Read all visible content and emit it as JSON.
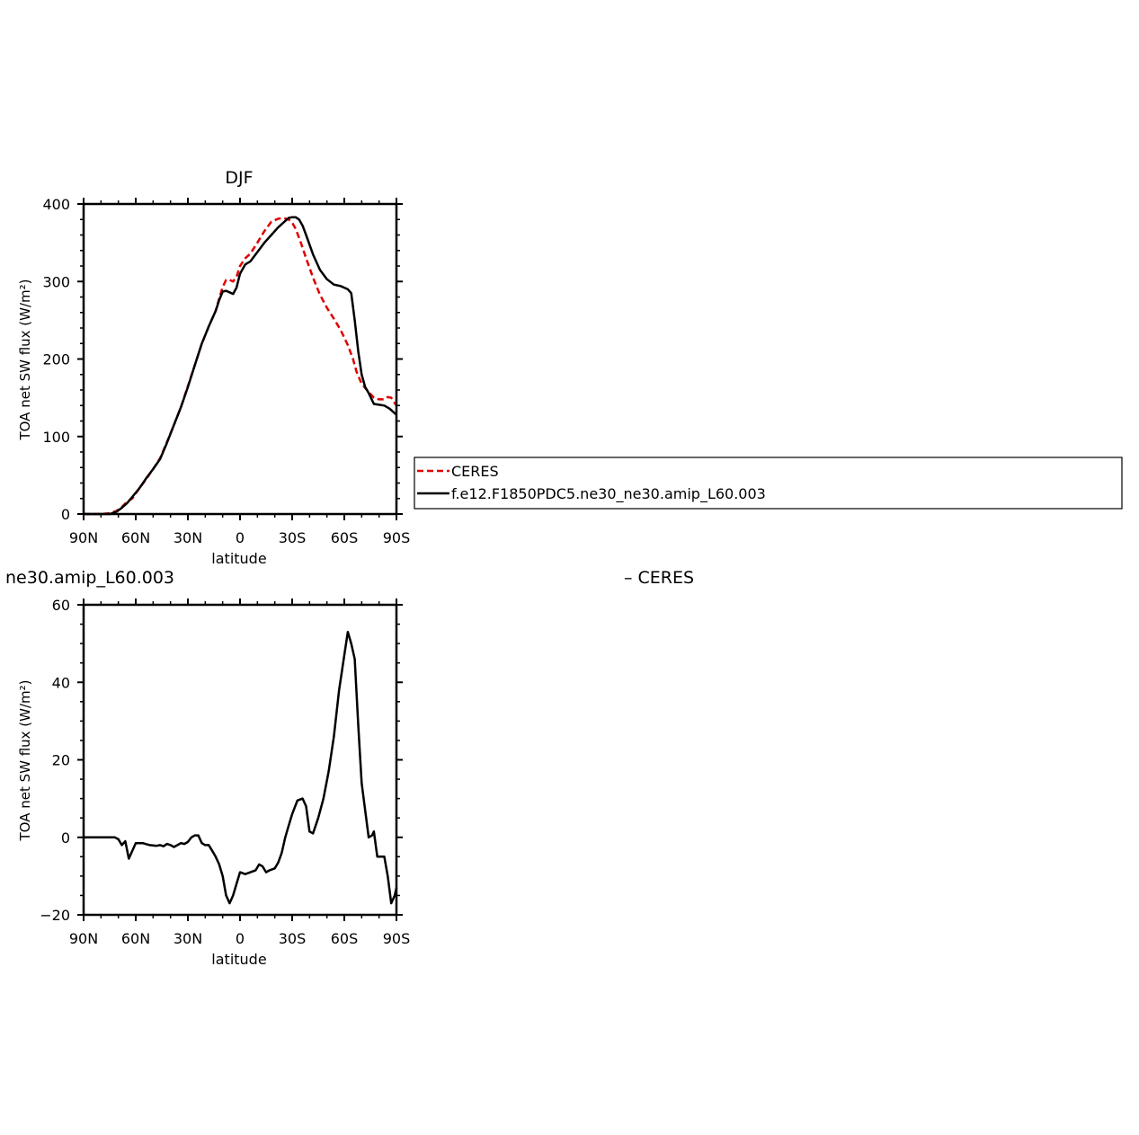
{
  "chart_data": [
    {
      "type": "line",
      "title": "DJF",
      "xlabel": "latitude",
      "ylabel": "TOA net SW flux (W/m²)",
      "xlim": [
        -90,
        90
      ],
      "ylim": [
        0,
        400
      ],
      "x_ticks": [
        {
          "value": -90,
          "label": "90N"
        },
        {
          "value": -60,
          "label": "60N"
        },
        {
          "value": -30,
          "label": "30N"
        },
        {
          "value": 0,
          "label": "0"
        },
        {
          "value": 30,
          "label": "30S"
        },
        {
          "value": 60,
          "label": "60S"
        },
        {
          "value": 90,
          "label": "90S"
        }
      ],
      "y_ticks": [
        0,
        100,
        200,
        300,
        400
      ],
      "legend_position": "right",
      "series": [
        {
          "name": "CERES",
          "color": "#e00000",
          "dash": "dashed",
          "x": [
            -90,
            -85,
            -80,
            -75,
            -71,
            -68,
            -65,
            -62,
            -58,
            -54,
            -50,
            -46,
            -42,
            -38,
            -34,
            -30,
            -26,
            -22,
            -18,
            -14,
            -12,
            -10,
            -8,
            -6,
            -4,
            -2,
            0,
            3,
            6,
            10,
            14,
            18,
            22,
            25,
            28,
            30,
            32,
            35,
            38,
            42,
            46,
            50,
            54,
            58,
            62,
            65,
            67,
            70,
            73,
            77,
            80,
            83,
            85,
            87,
            90
          ],
          "values": [
            0,
            0,
            0,
            1,
            4,
            9,
            16,
            20,
            33,
            45,
            58,
            72,
            93,
            115,
            138,
            165,
            192,
            220,
            242,
            262,
            278,
            293,
            302,
            302,
            300,
            306,
            320,
            330,
            336,
            350,
            365,
            377,
            381,
            382,
            380,
            376,
            368,
            350,
            330,
            305,
            283,
            266,
            252,
            237,
            218,
            200,
            184,
            168,
            160,
            150,
            148,
            148,
            151,
            150,
            140
          ]
        },
        {
          "name": "f.e12.F1850PDC5.ne30_ne30.amip_L60.003",
          "color": "#000000",
          "dash": "solid",
          "x": [
            -90,
            -85,
            -80,
            -75,
            -71,
            -68,
            -65,
            -62,
            -58,
            -54,
            -50,
            -46,
            -42,
            -38,
            -34,
            -30,
            -26,
            -22,
            -18,
            -14,
            -12,
            -10,
            -8,
            -6,
            -4,
            -2,
            0,
            3,
            6,
            10,
            14,
            18,
            22,
            25,
            28,
            30,
            32,
            34,
            36,
            38,
            42,
            46,
            50,
            54,
            58,
            62,
            64,
            66,
            68,
            70,
            72,
            74,
            77,
            80,
            83,
            86,
            88,
            90
          ],
          "values": [
            0,
            0,
            0,
            0,
            3,
            8,
            14,
            22,
            33,
            46,
            58,
            71,
            92,
            115,
            138,
            164,
            192,
            220,
            242,
            262,
            276,
            287,
            288,
            286,
            284,
            292,
            310,
            322,
            326,
            338,
            350,
            360,
            370,
            376,
            382,
            383,
            383,
            380,
            372,
            360,
            335,
            315,
            303,
            296,
            294,
            290,
            285,
            250,
            210,
            180,
            164,
            156,
            142,
            141,
            140,
            136,
            132,
            128
          ]
        }
      ]
    },
    {
      "type": "line",
      "title": "ne30.amip_L60.003",
      "subtitle": "– CERES",
      "xlabel": "latitude",
      "ylabel": "TOA net SW flux (W/m²)",
      "xlim": [
        -90,
        90
      ],
      "ylim": [
        -20,
        60
      ],
      "x_ticks": [
        {
          "value": -90,
          "label": "90N"
        },
        {
          "value": -60,
          "label": "60N"
        },
        {
          "value": -30,
          "label": "30N"
        },
        {
          "value": 0,
          "label": "0"
        },
        {
          "value": 30,
          "label": "30S"
        },
        {
          "value": 60,
          "label": "60S"
        },
        {
          "value": 90,
          "label": "90S"
        }
      ],
      "y_ticks": [
        -20,
        0,
        20,
        40,
        60
      ],
      "series": [
        {
          "color": "#000000",
          "dash": "solid",
          "x": [
            -90,
            -85,
            -80,
            -75,
            -72,
            -70,
            -68,
            -66,
            -64,
            -60,
            -56,
            -52,
            -48,
            -46,
            -44,
            -42,
            -40,
            -38,
            -36,
            -34,
            -32,
            -30,
            -28,
            -26,
            -24,
            -22,
            -20,
            -18,
            -16,
            -14,
            -12,
            -10,
            -8,
            -6,
            -4,
            -2,
            0,
            3,
            6,
            9,
            11,
            13,
            15,
            17,
            20,
            22,
            24,
            26,
            28,
            30,
            33,
            36,
            38,
            40,
            42,
            45,
            48,
            51,
            54,
            57,
            60,
            62,
            64,
            66,
            68,
            70,
            72,
            74,
            76,
            77,
            79,
            81,
            83,
            85,
            87,
            89,
            90
          ],
          "values": [
            0,
            0,
            0,
            0,
            0,
            -0.5,
            -2,
            -1,
            -5.5,
            -1.5,
            -1.5,
            -2,
            -2.2,
            -2,
            -2.3,
            -1.7,
            -2,
            -2.5,
            -2,
            -1.5,
            -1.7,
            -1.2,
            0,
            0.5,
            0.5,
            -1.5,
            -2,
            -2,
            -3.5,
            -5,
            -7,
            -10,
            -15,
            -17,
            -15,
            -12,
            -9,
            -9.5,
            -9,
            -8.5,
            -7,
            -7.5,
            -9,
            -8.5,
            -8,
            -6.5,
            -4,
            0,
            3,
            6,
            9.5,
            10,
            8,
            1.5,
            1,
            5,
            10,
            17,
            26,
            38,
            47,
            53,
            50,
            46,
            29,
            14,
            7,
            0,
            0.5,
            1.5,
            -5,
            -5,
            -5,
            -10,
            -17,
            -15,
            -13
          ]
        }
      ]
    }
  ]
}
